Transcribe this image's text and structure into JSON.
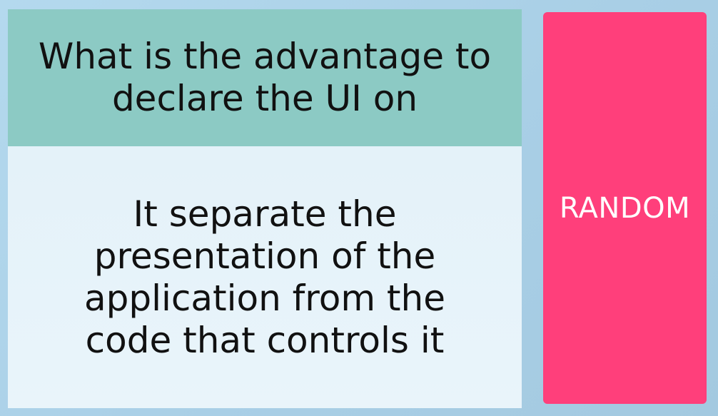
{
  "card": {
    "question": "What is the advantage to declare the UI on",
    "answer": "It separate the presentation of the application from the code that controls it"
  },
  "random_button": {
    "label": "RANDOM"
  },
  "colors": {
    "question_bg": "#8ccac4",
    "answer_bg": "#e6f3fa",
    "button_bg": "#ff3f7b",
    "page_bg": "#afd4ea"
  }
}
